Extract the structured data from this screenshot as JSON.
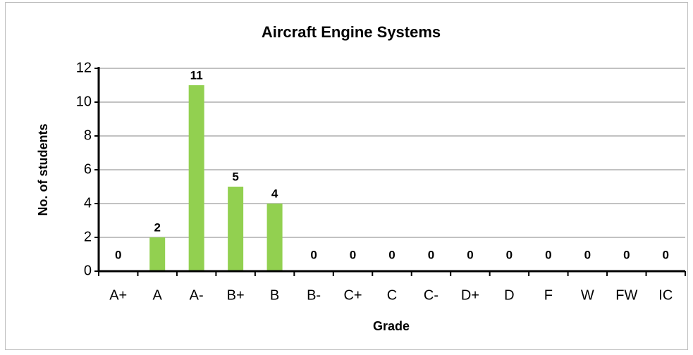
{
  "chart_data": {
    "type": "bar",
    "title": "Aircraft Engine Systems",
    "x_label": "Grade",
    "y_label": "No. of students",
    "categories": [
      "A+",
      "A",
      "A-",
      "B+",
      "B",
      "B-",
      "C+",
      "C",
      "C-",
      "D+",
      "D",
      "F",
      "W",
      "FW",
      "IC"
    ],
    "values": [
      0,
      2,
      11,
      5,
      4,
      0,
      0,
      0,
      0,
      0,
      0,
      0,
      0,
      0,
      0
    ],
    "color": "#92d050",
    "ylim": [
      0,
      12
    ],
    "yticks": [
      0,
      2,
      4,
      6,
      8,
      10,
      12
    ],
    "grid": true
  }
}
